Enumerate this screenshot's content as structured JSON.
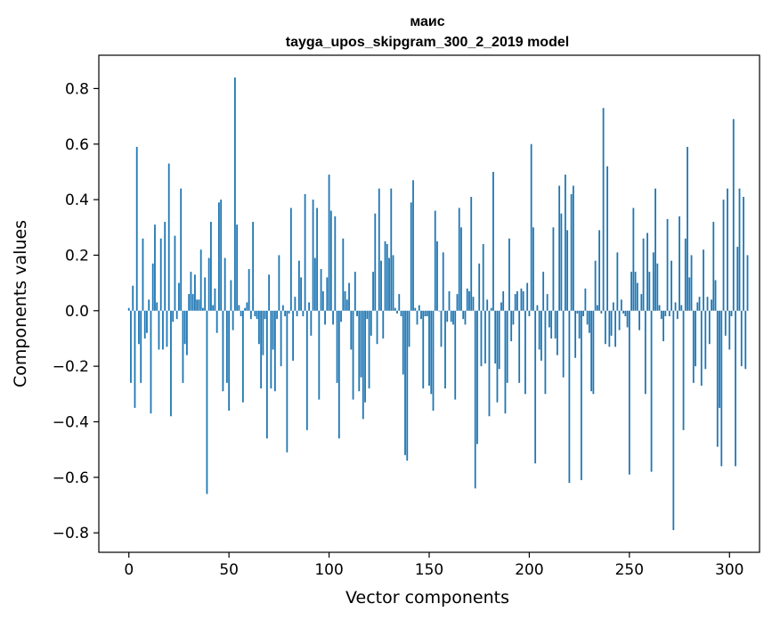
{
  "chart_data": {
    "type": "bar",
    "title": "маис",
    "subtitle": "tayga_upos_skipgram_300_2_2019 model",
    "xlabel": "Vector components",
    "ylabel": "Components values",
    "xlim": [
      -15,
      315
    ],
    "ylim": [
      -0.87,
      0.92
    ],
    "xticks": [
      0,
      50,
      100,
      150,
      200,
      250,
      300
    ],
    "yticks": [
      -0.8,
      -0.6,
      -0.4,
      -0.2,
      0.0,
      0.2,
      0.4,
      0.6,
      0.8
    ],
    "ytick_labels": [
      "−0.8",
      "−0.6",
      "−0.4",
      "−0.2",
      "0.0",
      "0.2",
      "0.4",
      "0.6",
      "0.8"
    ],
    "bar_color": "#1f77b4",
    "values": [
      0.01,
      -0.26,
      0.09,
      -0.35,
      0.59,
      -0.12,
      -0.26,
      0.26,
      -0.1,
      -0.08,
      0.04,
      -0.37,
      0.17,
      0.31,
      0.03,
      -0.14,
      0.26,
      -0.14,
      0.32,
      -0.13,
      0.53,
      -0.38,
      -0.04,
      0.27,
      -0.03,
      0.1,
      0.44,
      -0.26,
      -0.12,
      -0.16,
      0.06,
      0.14,
      0.06,
      0.13,
      0.04,
      0.04,
      0.22,
      0.01,
      0.12,
      -0.66,
      0.19,
      0.32,
      0.02,
      0.08,
      -0.08,
      0.39,
      0.4,
      -0.29,
      0.19,
      -0.26,
      -0.36,
      0.11,
      -0.07,
      0.84,
      0.31,
      0.02,
      -0.02,
      -0.33,
      0.01,
      0.03,
      0.15,
      -0.03,
      0.32,
      -0.02,
      -0.03,
      -0.12,
      -0.28,
      -0.16,
      -0.03,
      -0.46,
      0.13,
      -0.28,
      -0.14,
      -0.29,
      -0.03,
      0.2,
      -0.2,
      0.02,
      -0.02,
      -0.51,
      -0.01,
      0.37,
      -0.18,
      0.05,
      -0.02,
      0.18,
      0.12,
      -0.02,
      0.42,
      -0.43,
      0.03,
      -0.09,
      0.4,
      0.19,
      0.37,
      -0.32,
      0.15,
      0.07,
      -0.05,
      0.12,
      0.49,
      0.36,
      -0.05,
      0.34,
      -0.26,
      -0.46,
      -0.04,
      0.26,
      0.07,
      0.04,
      0.1,
      -0.14,
      -0.32,
      0.14,
      -0.02,
      -0.29,
      -0.24,
      -0.39,
      -0.33,
      -0.03,
      -0.28,
      -0.09,
      0.14,
      0.35,
      -0.12,
      0.44,
      0.18,
      -0.1,
      0.25,
      0.24,
      0.19,
      0.44,
      0.2,
      0.01,
      -0.01,
      0.06,
      -0.02,
      -0.23,
      -0.52,
      -0.54,
      -0.13,
      0.39,
      0.47,
      0.01,
      -0.05,
      0.02,
      -0.03,
      -0.28,
      -0.02,
      -0.02,
      -0.27,
      -0.3,
      -0.36,
      0.36,
      0.25,
      0.0,
      -0.13,
      0.21,
      -0.28,
      -0.04,
      0.07,
      -0.04,
      -0.05,
      -0.32,
      0.06,
      0.37,
      0.3,
      -0.03,
      -0.05,
      0.08,
      0.07,
      0.41,
      0.05,
      -0.64,
      -0.48,
      0.17,
      -0.2,
      0.24,
      -0.19,
      0.04,
      -0.38,
      0.01,
      0.5,
      -0.19,
      -0.33,
      -0.21,
      0.03,
      0.07,
      -0.37,
      -0.26,
      0.26,
      -0.11,
      -0.05,
      0.06,
      0.07,
      -0.26,
      0.08,
      0.07,
      -0.3,
      0.1,
      -0.02,
      0.6,
      0.3,
      -0.55,
      0.02,
      -0.14,
      -0.18,
      0.14,
      -0.3,
      0.06,
      -0.06,
      -0.1,
      0.3,
      -0.1,
      -0.16,
      0.45,
      0.35,
      -0.24,
      0.49,
      0.29,
      -0.62,
      0.42,
      0.45,
      -0.17,
      -0.01,
      -0.1,
      -0.61,
      -0.02,
      0.08,
      -0.05,
      -0.08,
      -0.29,
      -0.3,
      0.18,
      0.02,
      0.29,
      -0.01,
      0.73,
      -0.12,
      0.52,
      -0.13,
      -0.09,
      0.03,
      -0.13,
      0.21,
      -0.07,
      0.04,
      -0.01,
      -0.02,
      -0.06,
      -0.59,
      0.14,
      0.37,
      0.14,
      0.1,
      -0.07,
      0.06,
      0.26,
      -0.3,
      0.28,
      0.14,
      -0.58,
      0.21,
      0.44,
      0.17,
      0.02,
      -0.03,
      -0.11,
      -0.02,
      0.33,
      -0.02,
      0.18,
      -0.79,
      0.03,
      -0.03,
      0.34,
      0.02,
      -0.43,
      0.26,
      0.59,
      0.12,
      0.2,
      -0.26,
      -0.2,
      0.03,
      0.05,
      -0.27,
      0.22,
      -0.21,
      0.05,
      -0.12,
      0.04,
      0.32,
      0.11,
      -0.49,
      -0.35,
      -0.56,
      0.4,
      -0.09,
      0.44,
      -0.14,
      -0.02,
      0.69,
      -0.56,
      0.23,
      0.44,
      -0.2,
      0.41,
      -0.21,
      0.2
    ]
  }
}
